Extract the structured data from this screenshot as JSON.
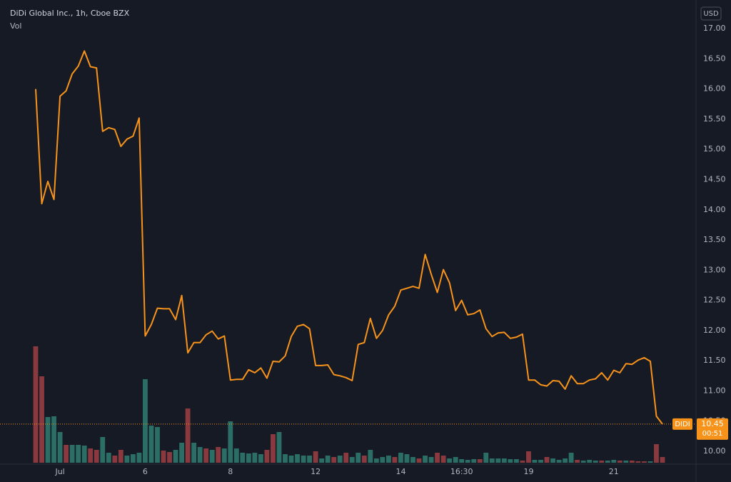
{
  "chart_data": {
    "type": "line",
    "title": "DiDi Global Inc., 1h, Cboe BZX",
    "volume_label": "Vol",
    "currency": "USD",
    "countdown": "00:51",
    "background": "#161a25",
    "categories": [
      null,
      null,
      null,
      null,
      "Jul",
      null,
      null,
      null,
      null,
      null,
      null,
      null,
      null,
      null,
      null,
      null,
      null,
      null,
      "6",
      null,
      null,
      null,
      null,
      null,
      null,
      null,
      null,
      null,
      null,
      null,
      null,
      null,
      "8",
      null,
      null,
      null,
      null,
      null,
      null,
      null,
      null,
      null,
      null,
      null,
      null,
      null,
      "12",
      null,
      null,
      null,
      null,
      null,
      null,
      null,
      null,
      null,
      null,
      null,
      null,
      null,
      "14",
      null,
      null,
      null,
      null,
      null,
      null,
      null,
      null,
      null,
      "16:30",
      null,
      null,
      null,
      null,
      null,
      null,
      null,
      null,
      null,
      null,
      "19",
      null,
      null,
      null,
      null,
      null,
      null,
      null,
      null,
      null,
      null,
      null,
      null,
      null,
      "21",
      null,
      null,
      null,
      null,
      null,
      null,
      null,
      null
    ],
    "series": [
      {
        "name": "DIDI",
        "color": "#f7931a",
        "values": [
          16.0,
          14.1,
          14.47,
          14.17,
          15.88,
          15.97,
          16.25,
          16.38,
          16.63,
          16.37,
          16.35,
          15.3,
          15.36,
          15.33,
          15.05,
          15.17,
          15.22,
          15.52,
          11.91,
          12.1,
          12.37,
          12.36,
          12.36,
          12.18,
          12.58,
          11.63,
          11.8,
          11.8,
          11.93,
          11.99,
          11.86,
          11.91,
          11.18,
          11.19,
          11.19,
          11.35,
          11.3,
          11.38,
          11.21,
          11.49,
          11.48,
          11.58,
          11.9,
          12.07,
          12.1,
          12.03,
          11.42,
          11.42,
          11.43,
          11.27,
          11.25,
          11.22,
          11.17,
          11.77,
          11.8,
          12.2,
          11.87,
          12.0,
          12.26,
          12.4,
          12.67,
          12.7,
          12.73,
          12.7,
          13.26,
          12.93,
          12.63,
          13.01,
          12.79,
          12.33,
          12.5,
          12.26,
          12.28,
          12.34,
          12.03,
          11.9,
          11.96,
          11.97,
          11.87,
          11.89,
          11.94,
          11.18,
          11.18,
          11.1,
          11.08,
          11.17,
          11.16,
          11.03,
          11.25,
          11.12,
          11.12,
          11.18,
          11.2,
          11.3,
          11.18,
          11.34,
          11.3,
          11.45,
          11.44,
          11.51,
          11.55,
          11.49,
          10.58,
          10.45
        ]
      },
      {
        "name": "Vol",
        "type": "bar",
        "axis": "y2",
        "values": [
          1.63,
          1.21,
          0.64,
          0.65,
          0.43,
          0.25,
          0.25,
          0.25,
          0.24,
          0.2,
          0.18,
          0.36,
          0.14,
          0.1,
          0.18,
          0.1,
          0.12,
          0.14,
          1.17,
          0.52,
          0.5,
          0.17,
          0.15,
          0.18,
          0.28,
          0.76,
          0.28,
          0.22,
          0.2,
          0.18,
          0.22,
          0.2,
          0.58,
          0.2,
          0.14,
          0.13,
          0.14,
          0.12,
          0.18,
          0.4,
          0.43,
          0.12,
          0.1,
          0.12,
          0.1,
          0.1,
          0.16,
          0.06,
          0.1,
          0.08,
          0.1,
          0.14,
          0.08,
          0.14,
          0.1,
          0.18,
          0.06,
          0.08,
          0.1,
          0.08,
          0.14,
          0.12,
          0.08,
          0.06,
          0.1,
          0.08,
          0.14,
          0.1,
          0.06,
          0.08,
          0.05,
          0.04,
          0.05,
          0.05,
          0.14,
          0.06,
          0.06,
          0.06,
          0.05,
          0.05,
          0.03,
          0.16,
          0.04,
          0.04,
          0.08,
          0.06,
          0.04,
          0.06,
          0.14,
          0.04,
          0.03,
          0.04,
          0.03,
          0.03,
          0.03,
          0.04,
          0.03,
          0.03,
          0.03,
          0.02,
          0.02,
          0.02,
          0.26,
          0.08
        ],
        "colors": [
          "#8a3a3f",
          "#8a3a3f",
          "#2b6e66",
          "#2b6e66",
          "#2b6e66",
          "#8a3a3f",
          "#2b6e66",
          "#2b6e66",
          "#2b6e66",
          "#8a3a3f",
          "#8a3a3f",
          "#2b6e66",
          "#2b6e66",
          "#8a3a3f",
          "#8a3a3f",
          "#2b6e66",
          "#2b6e66",
          "#2b6e66",
          "#2b6e66",
          "#2b6e66",
          "#2b6e66",
          "#8a3a3f",
          "#8a3a3f",
          "#2b6e66",
          "#2b6e66",
          "#8a3a3f",
          "#2b6e66",
          "#2b6e66",
          "#8a3a3f",
          "#2b6e66",
          "#8a3a3f",
          "#2b6e66",
          "#2b6e66",
          "#2b6e66",
          "#2b6e66",
          "#2b6e66",
          "#2b6e66",
          "#2b6e66",
          "#8a3a3f",
          "#8a3a3f",
          "#2b6e66",
          "#2b6e66",
          "#2b6e66",
          "#2b6e66",
          "#2b6e66",
          "#2b6e66",
          "#8a3a3f",
          "#2b6e66",
          "#2b6e66",
          "#8a3a3f",
          "#2b6e66",
          "#8a3a3f",
          "#2b6e66",
          "#2b6e66",
          "#8a3a3f",
          "#2b6e66",
          "#2b6e66",
          "#2b6e66",
          "#2b6e66",
          "#8a3a3f",
          "#2b6e66",
          "#2b6e66",
          "#2b6e66",
          "#8a3a3f",
          "#2b6e66",
          "#2b6e66",
          "#8a3a3f",
          "#8a3a3f",
          "#2b6e66",
          "#2b6e66",
          "#2b6e66",
          "#2b6e66",
          "#2b6e66",
          "#8a3a3f",
          "#2b6e66",
          "#2b6e66",
          "#2b6e66",
          "#2b6e66",
          "#2b6e66",
          "#2b6e66",
          "#8a3a3f",
          "#8a3a3f",
          "#2b6e66",
          "#2b6e66",
          "#8a3a3f",
          "#2b6e66",
          "#2b6e66",
          "#2b6e66",
          "#2b6e66",
          "#8a3a3f",
          "#2b6e66",
          "#2b6e66",
          "#2b6e66",
          "#8a3a3f",
          "#2b6e66",
          "#2b6e66",
          "#8a3a3f",
          "#2b6e66",
          "#8a3a3f",
          "#8a3a3f",
          "#8a3a3f",
          "#2b6e66",
          "#8a3a3f",
          "#8a3a3f"
        ]
      }
    ],
    "ylim": [
      9.81,
      17.38
    ],
    "y2lim": [
      0,
      6.4
    ],
    "yticks": [
      {
        "value": 10,
        "label": "10.00"
      },
      {
        "value": 10.5,
        "label": "10.50"
      },
      {
        "value": 11,
        "label": "11.00"
      },
      {
        "value": 11.5,
        "label": "11.50"
      },
      {
        "value": 12,
        "label": "12.00"
      },
      {
        "value": 12.5,
        "label": "12.50"
      },
      {
        "value": 13,
        "label": "13.00"
      },
      {
        "value": 13.5,
        "label": "13.50"
      },
      {
        "value": 14,
        "label": "14.00"
      },
      {
        "value": 14.5,
        "label": "14.50"
      },
      {
        "value": 15,
        "label": "15.00"
      },
      {
        "value": 15.5,
        "label": "15.50"
      },
      {
        "value": 16,
        "label": "16.00"
      },
      {
        "value": 16.5,
        "label": "16.50"
      },
      {
        "value": 17,
        "label": "17.00"
      }
    ],
    "grid": false
  }
}
